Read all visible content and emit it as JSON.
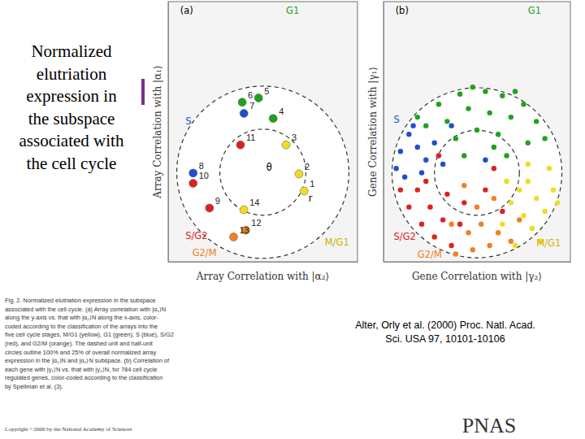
{
  "slide": {
    "title_lines": [
      "Normalized",
      "elutriation",
      "expression in",
      "the subspace",
      "associated with",
      "the cell cycle"
    ],
    "caption_lines": [
      "Fig. 2.    Normalized elutriation expression in the subspace",
      "associated with the cell cycle. (a) Array correlation with |α₁⟩N",
      "along the y-axis vs. that with |α₂⟩N along the x-axis, color-",
      "coded according to the classification of the arrays into the",
      "five cell cycle stages, M/G1 (yellow), G1 (green), S (blue), S/G2",
      "(red), and G2/M (orange). The dashed unit and half-unit",
      "circles outline 100% and 25% of overall normalized array",
      "expression in the |α₁⟩N and |α₂⟩N subspace. (b) Correlation of",
      "each gene with |γ₁⟩N vs. that with |γ₂⟩N, for 784 cell cycle",
      "regulated genes, color-coded according to the classification",
      "by Spellman et al. (3)."
    ],
    "citation_lines": [
      "Alter, Orly et al. (2000) Proc. Natl. Acad.",
      "Sci. USA 97, 10101-10106"
    ],
    "copyright": "Copyright ©2000 by the National Academy of Sciences",
    "publisher": "PNAS"
  },
  "chart_data": [
    {
      "type": "scatter",
      "xlabel": "Array Correlation with |α₂⟩",
      "ylabel": "Array Correlation with |α₁⟩",
      "xlim": [
        -1.1,
        1.1
      ],
      "ylim": [
        -1.05,
        2.0
      ],
      "tick_labels": false,
      "grid": false,
      "marker": "circle",
      "reference_circles": [
        1,
        0.5
      ],
      "series": [
        {
          "x": [
            0.48,
            0.42,
            0.27,
            0.12,
            -0.05,
            -0.24,
            -0.22,
            -0.81,
            -0.62,
            -0.81,
            -0.26,
            -0.2,
            -0.34,
            -0.22
          ],
          "values": [
            -0.22,
            -0.02,
            0.32,
            0.63,
            0.87,
            0.82,
            0.69,
            -0.01,
            -0.42,
            -0.13,
            0.32,
            -0.68,
            -0.76,
            -0.44
          ],
          "labels": [
            "1",
            "2",
            "3",
            "4",
            "5",
            "6",
            "7",
            "8",
            "9",
            "10",
            "11",
            "12",
            "13",
            "14"
          ],
          "colors": [
            "#f0dc1e",
            "#f0dc1e",
            "#f0dc1e",
            "#1fa21f",
            "#1fa21f",
            "#1fa21f",
            "#1f4fd0",
            "#1f4fd0",
            "#e02020",
            "#e02020",
            "#e02020",
            "#f08020",
            "#f08020",
            "#f0dc1e"
          ]
        }
      ],
      "annotations": [
        {
          "text": "(a)",
          "x": -0.96,
          "y": 1.86,
          "color": "#000000"
        },
        {
          "text": "G1",
          "x": 0.27,
          "y": 1.86,
          "color": "#1fa21f"
        },
        {
          "text": "S",
          "x": -0.9,
          "y": 0.56,
          "color": "#1f4fd0"
        },
        {
          "text": "S/G2",
          "x": -0.9,
          "y": -0.78,
          "color": "#e02020"
        },
        {
          "text": "G2/M",
          "x": -0.82,
          "y": -0.98,
          "color": "#f08020"
        },
        {
          "text": "M/G1",
          "x": 0.72,
          "y": -0.86,
          "color": "#d0b000"
        },
        {
          "text": "θ",
          "x": 0.04,
          "y": 0.02,
          "color": "#000000"
        },
        {
          "text": "r",
          "x": 0.53,
          "y": -0.34,
          "color": "#000000"
        }
      ]
    },
    {
      "type": "scatter",
      "xlabel": "Gene Correlation with |γ₂⟩",
      "ylabel": "Gene Correlation with |γ₁⟩",
      "xlim": [
        -1.1,
        1.1
      ],
      "ylim": [
        -1.04,
        2.0
      ],
      "tick_labels": false,
      "grid": false,
      "marker": "circle",
      "reference_circles": [
        1,
        0.5
      ],
      "series": [
        {
          "color": "#1fa21f",
          "x": [
            0.55,
            0.3,
            0.1,
            -0.2,
            -0.45,
            0.7,
            0.4,
            0.15,
            -0.1,
            -0.35,
            0.6,
            0.25,
            0.0,
            -0.25,
            -0.6,
            0.8,
            0.45,
            -0.05,
            0.2,
            -0.7,
            0.35,
            -0.15
          ],
          "values": [
            0.8,
            0.9,
            0.95,
            0.92,
            0.8,
            0.6,
            0.65,
            0.7,
            0.75,
            0.6,
            0.35,
            0.45,
            0.5,
            0.4,
            0.55,
            0.4,
            0.95,
            1.0,
            0.3,
            0.65,
            0.2,
            0.2
          ]
        },
        {
          "color": "#1f4fd0",
          "x": [
            -0.8,
            -0.9,
            -0.95,
            -0.7,
            -0.6,
            -0.75,
            -0.5,
            -0.85,
            -0.4,
            -0.65,
            -0.3,
            0.1
          ],
          "values": [
            0.45,
            0.25,
            0.05,
            0.3,
            0.15,
            0.55,
            0.35,
            -0.05,
            0.1,
            0.0,
            0.55,
            0.15
          ]
        },
        {
          "color": "#e02020",
          "x": [
            -0.9,
            -0.8,
            -0.65,
            -0.5,
            -0.7,
            -0.55,
            -0.4,
            -0.35,
            -0.2,
            -0.6,
            -0.3,
            -0.15,
            0.1,
            0.2,
            -0.45,
            0.3
          ],
          "values": [
            -0.2,
            -0.4,
            -0.6,
            -0.75,
            -0.2,
            -0.4,
            -0.55,
            -0.25,
            -0.6,
            -0.1,
            -0.85,
            -0.35,
            -0.2,
            0.05,
            0.2,
            -0.45
          ]
        },
        {
          "color": "#f08020",
          "x": [
            -0.25,
            -0.05,
            0.15,
            -0.1,
            0.05,
            0.25,
            -0.3,
            0.4,
            0.0,
            0.2,
            -0.15,
            0.5
          ],
          "values": [
            -0.95,
            -0.9,
            -0.85,
            -0.7,
            -0.6,
            -0.7,
            -0.6,
            -0.8,
            -0.4,
            -0.3,
            -0.15,
            -0.55
          ]
        },
        {
          "color": "#f0dc1e",
          "x": [
            0.45,
            0.65,
            0.8,
            0.9,
            0.55,
            0.7,
            0.4,
            0.6,
            0.3,
            0.85,
            0.5,
            0.75,
            0.35,
            0.95,
            0.6
          ],
          "values": [
            -0.85,
            -0.65,
            -0.45,
            -0.2,
            -0.5,
            -0.3,
            -0.35,
            -0.1,
            -0.6,
            0.05,
            -0.2,
            -0.8,
            -0.1,
            -0.35,
            0.1
          ]
        }
      ],
      "annotations": [
        {
          "text": "(b)",
          "x": -0.96,
          "y": 1.86,
          "color": "#000000"
        },
        {
          "text": "G1",
          "x": 0.6,
          "y": 1.86,
          "color": "#1fa21f"
        },
        {
          "text": "S",
          "x": -0.98,
          "y": 0.58,
          "color": "#1f4fd0"
        },
        {
          "text": "S/G2",
          "x": -0.98,
          "y": -0.78,
          "color": "#e02020"
        },
        {
          "text": "G2/M",
          "x": -0.7,
          "y": -0.99,
          "color": "#f08020"
        },
        {
          "text": "M/G1",
          "x": 0.7,
          "y": -0.86,
          "color": "#d0b000"
        }
      ]
    }
  ]
}
